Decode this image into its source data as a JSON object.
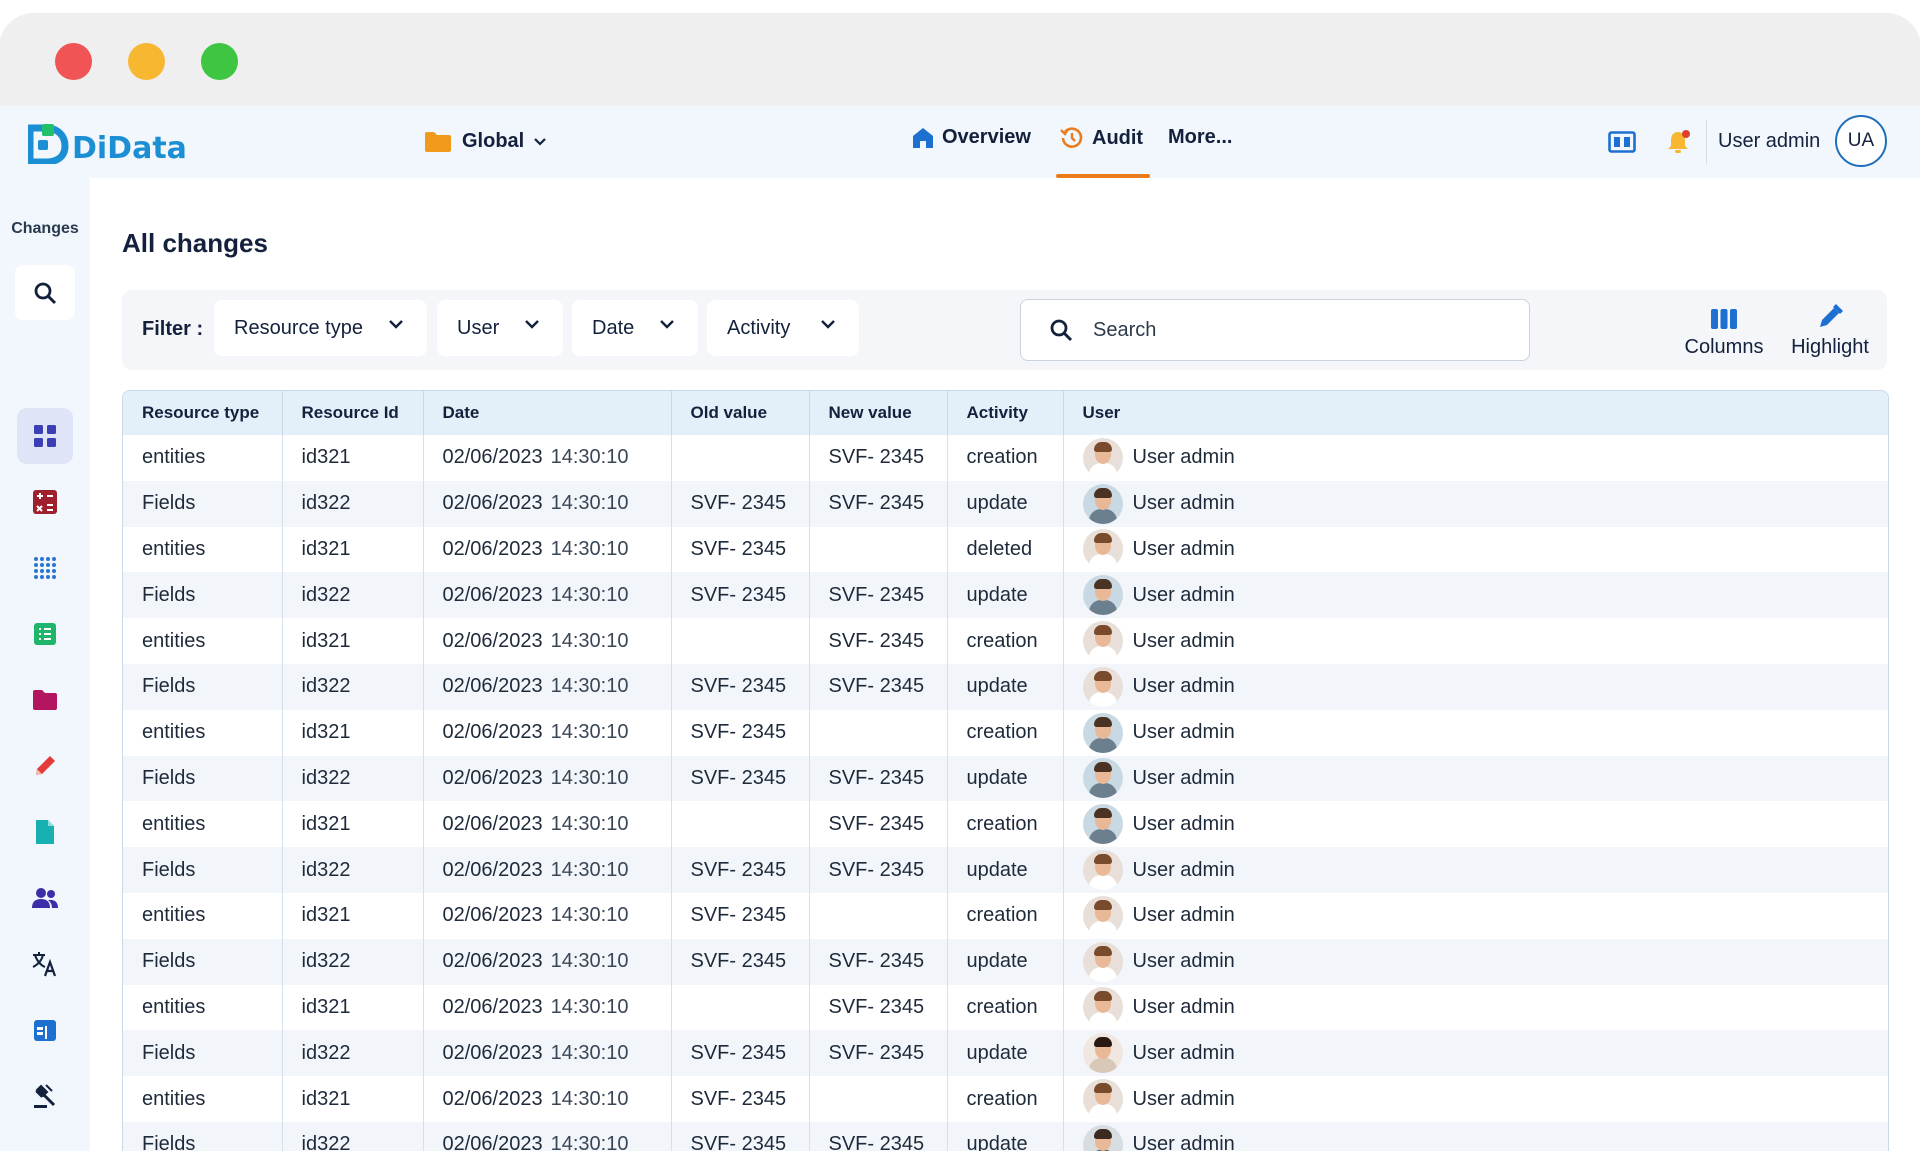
{
  "window": {
    "dots": [
      "#f05454",
      "#f7b731",
      "#3ec542"
    ]
  },
  "header": {
    "brand": "DiData",
    "workspace": "Global",
    "nav": [
      {
        "label": "Overview",
        "icon": "home-icon"
      },
      {
        "label": "Audit",
        "icon": "history-icon",
        "active": true
      },
      {
        "label": "More..."
      }
    ],
    "user_name": "User admin",
    "user_initials": "UA",
    "accent_color": "#ec7b1c"
  },
  "sidebar": {
    "title": "Changes",
    "items": [
      {
        "name": "dashboard-icon",
        "color": "#3b3fb5",
        "active": true
      },
      {
        "name": "calculator-icon",
        "color": "#a01f2c"
      },
      {
        "name": "grid-icon",
        "color": "#2a76d1"
      },
      {
        "name": "list-icon",
        "color": "#1fb56a"
      },
      {
        "name": "folder-icon",
        "color": "#b3155e"
      },
      {
        "name": "pencil-icon",
        "color": "#e33a3a"
      },
      {
        "name": "document-icon",
        "color": "#19b0b3"
      },
      {
        "name": "users-icon",
        "color": "#3b2ea8"
      },
      {
        "name": "translate-icon",
        "color": "#14213d"
      },
      {
        "name": "calendar-icon",
        "color": "#1d6fd0"
      },
      {
        "name": "gavel-icon",
        "color": "#14213d"
      }
    ]
  },
  "page": {
    "title": "All changes"
  },
  "filters": {
    "label": "Filter :",
    "items": [
      "Resource type",
      "User",
      "Date",
      "Activity"
    ],
    "search_placeholder": "Search",
    "tools": [
      {
        "label": "Columns",
        "icon": "columns-icon"
      },
      {
        "label": "Highlight",
        "icon": "highlight-icon"
      }
    ]
  },
  "table": {
    "columns": [
      "Resource type",
      "Resource Id",
      "Date",
      "Old value",
      "New value",
      "Activity",
      "User"
    ],
    "rows": [
      {
        "type": "entities",
        "id": "id321",
        "date": "02/06/2023",
        "time": "14:30:10",
        "old": "",
        "new": "SVF- 2345",
        "activity": "creation",
        "user": "User admin",
        "avatar": "a"
      },
      {
        "type": "Fields",
        "id": "id322",
        "date": "02/06/2023",
        "time": "14:30:10",
        "old": "SVF- 2345",
        "new": "SVF- 2345",
        "activity": "update",
        "user": "User admin",
        "avatar": "b"
      },
      {
        "type": "entities",
        "id": "id321",
        "date": "02/06/2023",
        "time": "14:30:10",
        "old": "SVF- 2345",
        "new": "",
        "activity": "deleted",
        "user": "User admin",
        "avatar": "a"
      },
      {
        "type": "Fields",
        "id": "id322",
        "date": "02/06/2023",
        "time": "14:30:10",
        "old": "SVF- 2345",
        "new": "SVF- 2345",
        "activity": "update",
        "user": "User admin",
        "avatar": "b"
      },
      {
        "type": "entities",
        "id": "id321",
        "date": "02/06/2023",
        "time": "14:30:10",
        "old": "",
        "new": "SVF- 2345",
        "activity": "creation",
        "user": "User admin",
        "avatar": "a"
      },
      {
        "type": "Fields",
        "id": "id322",
        "date": "02/06/2023",
        "time": "14:30:10",
        "old": "SVF- 2345",
        "new": "SVF- 2345",
        "activity": "update",
        "user": "User admin",
        "avatar": "a"
      },
      {
        "type": "entities",
        "id": "id321",
        "date": "02/06/2023",
        "time": "14:30:10",
        "old": "SVF- 2345",
        "new": "",
        "activity": "creation",
        "user": "User admin",
        "avatar": "b"
      },
      {
        "type": "Fields",
        "id": "id322",
        "date": "02/06/2023",
        "time": "14:30:10",
        "old": "SVF- 2345",
        "new": "SVF- 2345",
        "activity": "update",
        "user": "User admin",
        "avatar": "b"
      },
      {
        "type": "entities",
        "id": "id321",
        "date": "02/06/2023",
        "time": "14:30:10",
        "old": "",
        "new": "SVF- 2345",
        "activity": "creation",
        "user": "User admin",
        "avatar": "b"
      },
      {
        "type": "Fields",
        "id": "id322",
        "date": "02/06/2023",
        "time": "14:30:10",
        "old": "SVF- 2345",
        "new": "SVF- 2345",
        "activity": "update",
        "user": "User admin",
        "avatar": "a"
      },
      {
        "type": "entities",
        "id": "id321",
        "date": "02/06/2023",
        "time": "14:30:10",
        "old": "SVF- 2345",
        "new": "",
        "activity": "creation",
        "user": "User admin",
        "avatar": "a"
      },
      {
        "type": "Fields",
        "id": "id322",
        "date": "02/06/2023",
        "time": "14:30:10",
        "old": "SVF- 2345",
        "new": "SVF- 2345",
        "activity": "update",
        "user": "User admin",
        "avatar": "a"
      },
      {
        "type": "entities",
        "id": "id321",
        "date": "02/06/2023",
        "time": "14:30:10",
        "old": "",
        "new": "SVF- 2345",
        "activity": "creation",
        "user": "User admin",
        "avatar": "a"
      },
      {
        "type": "Fields",
        "id": "id322",
        "date": "02/06/2023",
        "time": "14:30:10",
        "old": "SVF- 2345",
        "new": "SVF- 2345",
        "activity": "update",
        "user": "User admin",
        "avatar": "c"
      },
      {
        "type": "entities",
        "id": "id321",
        "date": "02/06/2023",
        "time": "14:30:10",
        "old": "SVF- 2345",
        "new": "",
        "activity": "creation",
        "user": "User admin",
        "avatar": "a"
      },
      {
        "type": "Fields",
        "id": "id322",
        "date": "02/06/2023",
        "time": "14:30:10",
        "old": "SVF- 2345",
        "new": "SVF- 2345",
        "activity": "update",
        "user": "User admin",
        "avatar": "d"
      }
    ]
  }
}
